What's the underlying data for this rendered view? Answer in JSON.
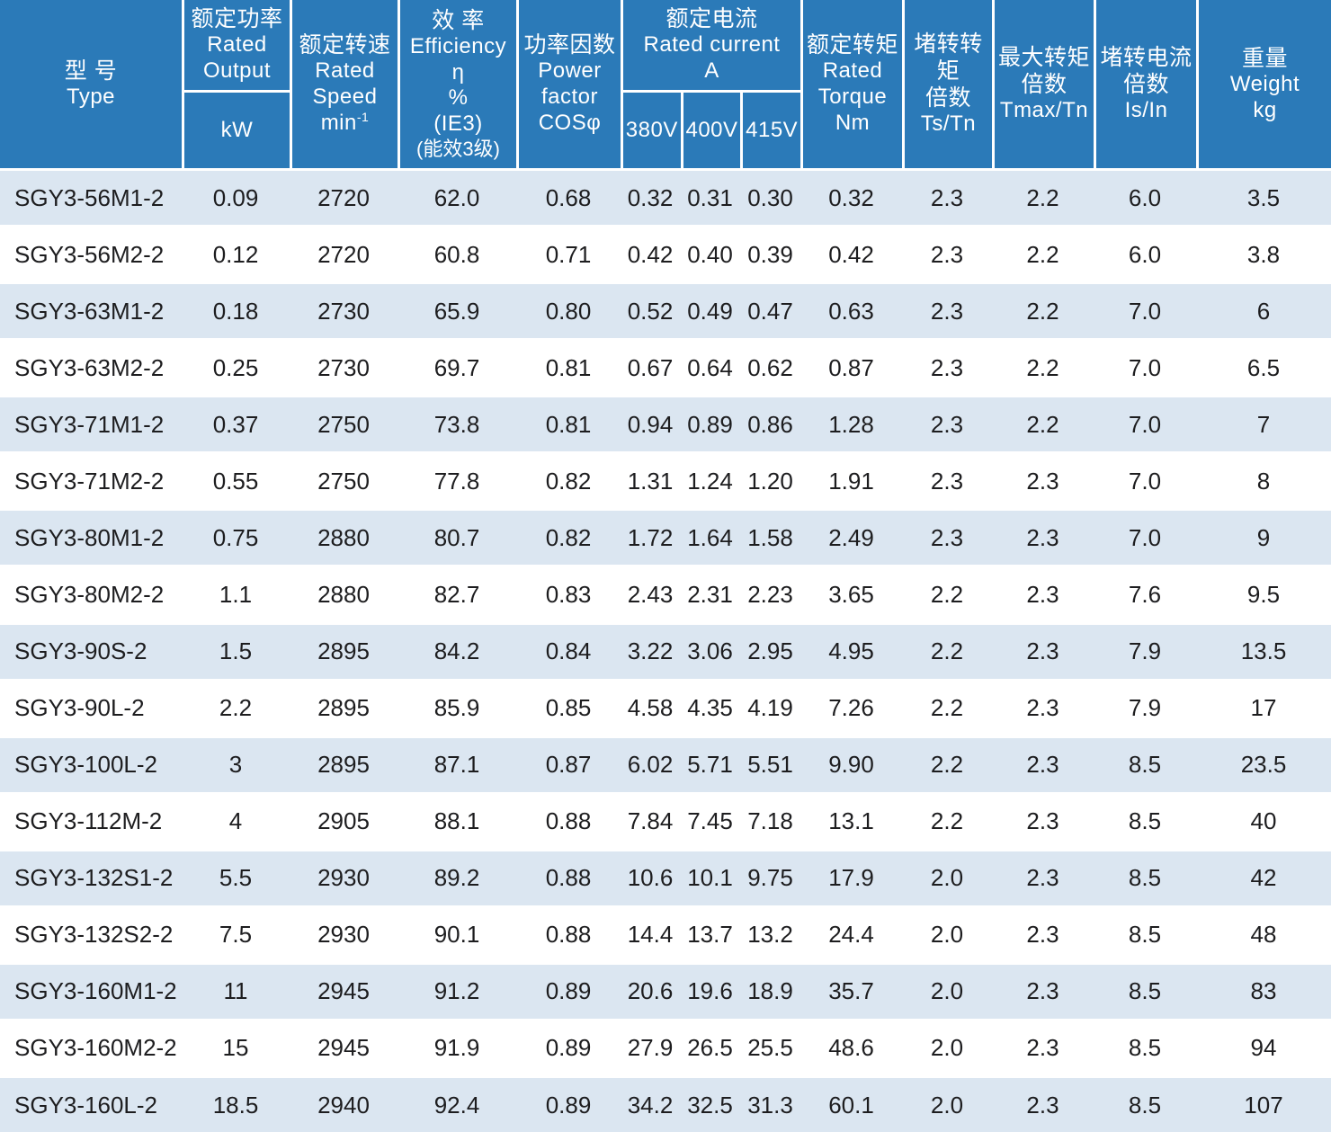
{
  "colors": {
    "header_bg": "#2b7ab8",
    "stripe_bg": "#dbe6f1",
    "grid_line": "#ffffff",
    "header_text": "#ffffff",
    "body_text": "#1d1d1f"
  },
  "table": {
    "header": {
      "type": {
        "zh": "型 号",
        "en": "Type"
      },
      "rated_output": {
        "zh": "额定功率",
        "en1": "Rated",
        "en2": "Output",
        "unit": "kW"
      },
      "rated_speed": {
        "zh": "额定转速",
        "en1": "Rated",
        "en2": "Speed",
        "unit": "min",
        "unit_sup": "-1"
      },
      "efficiency": {
        "zh": "效 率",
        "en": "Efficiency",
        "sym": "η",
        "pct": "%",
        "ie3": "(IE3)",
        "zh2": "(能效3级)"
      },
      "power_factor": {
        "zh": "功率因数",
        "en1": "Power",
        "en2": "factor",
        "sym": "COSφ"
      },
      "rated_current": {
        "zh": "额定电流",
        "en": "Rated current",
        "unit": "A",
        "v380": "380V",
        "v400": "400V",
        "v415": "415V"
      },
      "rated_torque": {
        "zh": "额定转矩",
        "en1": "Rated",
        "en2": "Torque",
        "unit": "Nm"
      },
      "stall_torque": {
        "zh": "堵转转矩",
        "zh2": "倍数",
        "sym": "Ts/Tn"
      },
      "max_torque": {
        "zh": "最大转矩",
        "zh2": "倍数",
        "sym": "Tmax/Tn"
      },
      "stall_current": {
        "zh": "堵转电流",
        "zh2": "倍数",
        "sym": "Is/In"
      },
      "weight": {
        "zh": "重量",
        "en": "Weight",
        "unit": "kg"
      }
    },
    "column_keys": [
      "type",
      "rated-output-kw",
      "rated-speed",
      "efficiency",
      "power-factor",
      "current-380v",
      "current-400v",
      "current-415v",
      "rated-torque",
      "ts-tn",
      "tmax-tn",
      "is-in",
      "weight"
    ],
    "rows": [
      [
        "SGY3-56M1-2",
        "0.09",
        "2720",
        "62.0",
        "0.68",
        "0.32",
        "0.31",
        "0.30",
        "0.32",
        "2.3",
        "2.2",
        "6.0",
        "3.5"
      ],
      [
        "SGY3-56M2-2",
        "0.12",
        "2720",
        "60.8",
        "0.71",
        "0.42",
        "0.40",
        "0.39",
        "0.42",
        "2.3",
        "2.2",
        "6.0",
        "3.8"
      ],
      [
        "SGY3-63M1-2",
        "0.18",
        "2730",
        "65.9",
        "0.80",
        "0.52",
        "0.49",
        "0.47",
        "0.63",
        "2.3",
        "2.2",
        "7.0",
        "6"
      ],
      [
        "SGY3-63M2-2",
        "0.25",
        "2730",
        "69.7",
        "0.81",
        "0.67",
        "0.64",
        "0.62",
        "0.87",
        "2.3",
        "2.2",
        "7.0",
        "6.5"
      ],
      [
        "SGY3-71M1-2",
        "0.37",
        "2750",
        "73.8",
        "0.81",
        "0.94",
        "0.89",
        "0.86",
        "1.28",
        "2.3",
        "2.2",
        "7.0",
        "7"
      ],
      [
        "SGY3-71M2-2",
        "0.55",
        "2750",
        "77.8",
        "0.82",
        "1.31",
        "1.24",
        "1.20",
        "1.91",
        "2.3",
        "2.3",
        "7.0",
        "8"
      ],
      [
        "SGY3-80M1-2",
        "0.75",
        "2880",
        "80.7",
        "0.82",
        "1.72",
        "1.64",
        "1.58",
        "2.49",
        "2.3",
        "2.3",
        "7.0",
        "9"
      ],
      [
        "SGY3-80M2-2",
        "1.1",
        "2880",
        "82.7",
        "0.83",
        "2.43",
        "2.31",
        "2.23",
        "3.65",
        "2.2",
        "2.3",
        "7.6",
        "9.5"
      ],
      [
        "SGY3-90S-2",
        "1.5",
        "2895",
        "84.2",
        "0.84",
        "3.22",
        "3.06",
        "2.95",
        "4.95",
        "2.2",
        "2.3",
        "7.9",
        "13.5"
      ],
      [
        "SGY3-90L-2",
        "2.2",
        "2895",
        "85.9",
        "0.85",
        "4.58",
        "4.35",
        "4.19",
        "7.26",
        "2.2",
        "2.3",
        "7.9",
        "17"
      ],
      [
        "SGY3-100L-2",
        "3",
        "2895",
        "87.1",
        "0.87",
        "6.02",
        "5.71",
        "5.51",
        "9.90",
        "2.2",
        "2.3",
        "8.5",
        "23.5"
      ],
      [
        "SGY3-112M-2",
        "4",
        "2905",
        "88.1",
        "0.88",
        "7.84",
        "7.45",
        "7.18",
        "13.1",
        "2.2",
        "2.3",
        "8.5",
        "40"
      ],
      [
        "SGY3-132S1-2",
        "5.5",
        "2930",
        "89.2",
        "0.88",
        "10.6",
        "10.1",
        "9.75",
        "17.9",
        "2.0",
        "2.3",
        "8.5",
        "42"
      ],
      [
        "SGY3-132S2-2",
        "7.5",
        "2930",
        "90.1",
        "0.88",
        "14.4",
        "13.7",
        "13.2",
        "24.4",
        "2.0",
        "2.3",
        "8.5",
        "48"
      ],
      [
        "SGY3-160M1-2",
        "11",
        "2945",
        "91.2",
        "0.89",
        "20.6",
        "19.6",
        "18.9",
        "35.7",
        "2.0",
        "2.3",
        "8.5",
        "83"
      ],
      [
        "SGY3-160M2-2",
        "15",
        "2945",
        "91.9",
        "0.89",
        "27.9",
        "26.5",
        "25.5",
        "48.6",
        "2.0",
        "2.3",
        "8.5",
        "94"
      ],
      [
        "SGY3-160L-2",
        "18.5",
        "2940",
        "92.4",
        "0.89",
        "34.2",
        "32.5",
        "31.3",
        "60.1",
        "2.0",
        "2.3",
        "8.5",
        "107"
      ]
    ]
  }
}
